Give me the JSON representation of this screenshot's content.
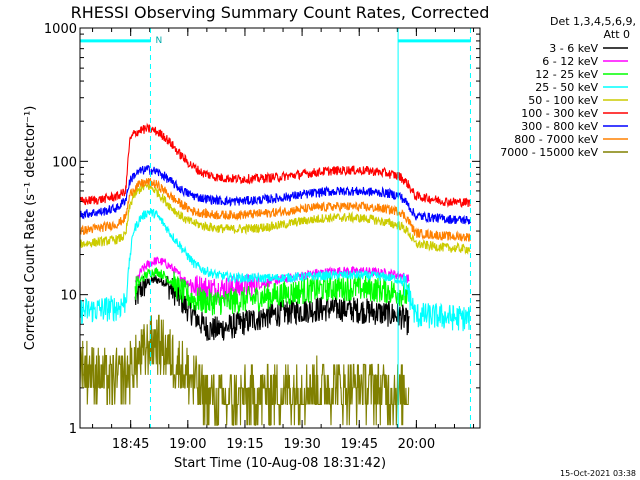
{
  "chart_data": {
    "type": "line",
    "title": "RHESSI Observing Summary Count Rates, Corrected",
    "ylabel": "Corrected Count Rate (s⁻¹ detector⁻¹)",
    "xlabel": "Start Time (10-Aug-08 18:31:42)",
    "timestamp": "15-Oct-2021 03:38",
    "y_scale": "log",
    "ylim": [
      1,
      1000
    ],
    "x_range_min": [
      0,
      105
    ],
    "y_tick_labels": [
      "1",
      "10",
      "100",
      "1000"
    ],
    "x_ticks": [
      {
        "label": "18:45",
        "t": 13.3
      },
      {
        "label": "19:00",
        "t": 28.3
      },
      {
        "label": "19:15",
        "t": 43.3
      },
      {
        "label": "19:30",
        "t": 58.3
      },
      {
        "label": "19:45",
        "t": 73.3
      },
      {
        "label": "20:00",
        "t": 88.3
      }
    ],
    "legend": {
      "header": [
        "Det 1,3,4,5,6,9,",
        "Att 0"
      ],
      "placement": "right"
    },
    "attenuator_bar": {
      "level": 800,
      "color": "#00ffff",
      "segments": [
        [
          0,
          18.5
        ],
        [
          83.5,
          102.5
        ]
      ]
    },
    "attenuator_label": "N",
    "dashed_markers_min": [
      18.5,
      102.5
    ],
    "solid_markers_min": [
      0,
      83.5
    ],
    "series": [
      {
        "name": "3 - 6 keV",
        "color": "#000000",
        "points": [
          [
            14.5,
            9
          ],
          [
            16,
            11
          ],
          [
            18,
            12.5
          ],
          [
            20,
            13
          ],
          [
            22,
            12.5
          ],
          [
            24,
            11
          ],
          [
            26,
            9.5
          ],
          [
            28,
            8
          ],
          [
            30,
            7
          ],
          [
            32,
            6
          ],
          [
            34,
            5.5
          ],
          [
            36,
            5.5
          ],
          [
            40,
            5.8
          ],
          [
            44,
            6.3
          ],
          [
            48,
            6.8
          ],
          [
            52,
            7.2
          ],
          [
            56,
            7.5
          ],
          [
            60,
            7.7
          ],
          [
            64,
            7.8
          ],
          [
            68,
            7.9
          ],
          [
            72,
            7.7
          ],
          [
            76,
            7.5
          ],
          [
            80,
            7.2
          ],
          [
            84,
            7
          ],
          [
            86.5,
            6
          ]
        ]
      },
      {
        "name": "6 - 12 keV",
        "color": "#ff00ff",
        "points": [
          [
            14.5,
            12
          ],
          [
            16,
            15
          ],
          [
            18,
            17
          ],
          [
            20,
            18
          ],
          [
            22,
            17.5
          ],
          [
            24,
            16
          ],
          [
            26,
            14
          ],
          [
            28,
            12.5
          ],
          [
            30,
            11.5
          ],
          [
            34,
            11
          ],
          [
            38,
            11
          ],
          [
            44,
            11.5
          ],
          [
            50,
            12.5
          ],
          [
            56,
            13.5
          ],
          [
            62,
            14.5
          ],
          [
            68,
            15
          ],
          [
            74,
            15
          ],
          [
            80,
            14.5
          ],
          [
            84,
            14
          ],
          [
            86.5,
            13
          ]
        ]
      },
      {
        "name": "12 - 25 keV",
        "color": "#00ff00",
        "points": [
          [
            14.5,
            11
          ],
          [
            16,
            13
          ],
          [
            18,
            14.5
          ],
          [
            20,
            15
          ],
          [
            22,
            14
          ],
          [
            24,
            12.5
          ],
          [
            26,
            11
          ],
          [
            28,
            10
          ],
          [
            30,
            9.2
          ],
          [
            34,
            8.8
          ],
          [
            38,
            8.8
          ],
          [
            44,
            9.2
          ],
          [
            50,
            9.8
          ],
          [
            56,
            10.4
          ],
          [
            62,
            11
          ],
          [
            68,
            11.3
          ],
          [
            74,
            11.2
          ],
          [
            80,
            10.8
          ],
          [
            84,
            10.3
          ],
          [
            86.5,
            9.5
          ]
        ]
      },
      {
        "name": "25 - 50 keV",
        "color": "#00ffff",
        "points": [
          [
            0,
            7.5
          ],
          [
            6,
            7.8
          ],
          [
            10,
            8
          ],
          [
            12,
            9
          ],
          [
            13,
            18
          ],
          [
            14,
            30
          ],
          [
            16,
            38
          ],
          [
            18,
            42
          ],
          [
            20,
            40
          ],
          [
            22,
            34
          ],
          [
            24,
            28
          ],
          [
            26,
            24
          ],
          [
            28,
            20
          ],
          [
            30,
            17
          ],
          [
            32,
            15.5
          ],
          [
            36,
            14
          ],
          [
            40,
            13.5
          ],
          [
            44,
            13.3
          ],
          [
            50,
            13.3
          ],
          [
            56,
            13.5
          ],
          [
            62,
            13.8
          ],
          [
            68,
            14
          ],
          [
            74,
            14
          ],
          [
            80,
            13.6
          ],
          [
            84,
            13
          ],
          [
            86,
            11
          ],
          [
            88,
            7
          ],
          [
            96,
            6.8
          ],
          [
            102.5,
            6.6
          ]
        ]
      },
      {
        "name": "50 - 100 keV",
        "color": "#cccc00",
        "points": [
          [
            0,
            24
          ],
          [
            6,
            25
          ],
          [
            10,
            26
          ],
          [
            12,
            28
          ],
          [
            13,
            45
          ],
          [
            14,
            55
          ],
          [
            16,
            63
          ],
          [
            18,
            65
          ],
          [
            20,
            60
          ],
          [
            22,
            52
          ],
          [
            24,
            45
          ],
          [
            26,
            40
          ],
          [
            28,
            36
          ],
          [
            32,
            33
          ],
          [
            36,
            31.5
          ],
          [
            40,
            31
          ],
          [
            46,
            31.5
          ],
          [
            52,
            33
          ],
          [
            58,
            35.5
          ],
          [
            64,
            37.5
          ],
          [
            70,
            38
          ],
          [
            76,
            37
          ],
          [
            80,
            35
          ],
          [
            84,
            33
          ],
          [
            86,
            30
          ],
          [
            88,
            24
          ],
          [
            96,
            22.5
          ],
          [
            102.5,
            22
          ]
        ]
      },
      {
        "name": "100 - 300 keV",
        "color": "#ff0000",
        "points": [
          [
            0,
            50
          ],
          [
            6,
            52
          ],
          [
            10,
            55
          ],
          [
            12,
            60
          ],
          [
            13,
            140
          ],
          [
            14,
            160
          ],
          [
            16,
            172
          ],
          [
            18,
            175
          ],
          [
            20,
            168
          ],
          [
            22,
            155
          ],
          [
            24,
            135
          ],
          [
            26,
            115
          ],
          [
            28,
            100
          ],
          [
            30,
            90
          ],
          [
            32,
            82
          ],
          [
            36,
            76
          ],
          [
            40,
            74
          ],
          [
            46,
            74
          ],
          [
            52,
            76
          ],
          [
            58,
            80
          ],
          [
            64,
            84
          ],
          [
            70,
            86
          ],
          [
            76,
            85
          ],
          [
            80,
            82
          ],
          [
            84,
            77
          ],
          [
            86,
            68
          ],
          [
            88,
            55
          ],
          [
            96,
            50
          ],
          [
            102.5,
            49
          ]
        ]
      },
      {
        "name": "300 - 800 keV",
        "color": "#0000ff",
        "points": [
          [
            0,
            40
          ],
          [
            6,
            42
          ],
          [
            10,
            45
          ],
          [
            12,
            52
          ],
          [
            13,
            70
          ],
          [
            14,
            78
          ],
          [
            16,
            85
          ],
          [
            18,
            87
          ],
          [
            20,
            84
          ],
          [
            22,
            78
          ],
          [
            24,
            70
          ],
          [
            26,
            63
          ],
          [
            28,
            58
          ],
          [
            30,
            55
          ],
          [
            32,
            53
          ],
          [
            36,
            51
          ],
          [
            40,
            50
          ],
          [
            46,
            51
          ],
          [
            52,
            53
          ],
          [
            58,
            56
          ],
          [
            64,
            59
          ],
          [
            70,
            60
          ],
          [
            76,
            59
          ],
          [
            80,
            58
          ],
          [
            84,
            55
          ],
          [
            86,
            48
          ],
          [
            88,
            39
          ],
          [
            96,
            37
          ],
          [
            102.5,
            36
          ]
        ]
      },
      {
        "name": "800 - 7000 keV",
        "color": "#ff8000",
        "points": [
          [
            0,
            30
          ],
          [
            6,
            32
          ],
          [
            10,
            34
          ],
          [
            12,
            38
          ],
          [
            13,
            55
          ],
          [
            14,
            62
          ],
          [
            16,
            68
          ],
          [
            18,
            70
          ],
          [
            20,
            67
          ],
          [
            22,
            61
          ],
          [
            24,
            54
          ],
          [
            26,
            49
          ],
          [
            28,
            45
          ],
          [
            30,
            42
          ],
          [
            34,
            40
          ],
          [
            38,
            39.5
          ],
          [
            44,
            40
          ],
          [
            50,
            41
          ],
          [
            56,
            43
          ],
          [
            62,
            45
          ],
          [
            68,
            46
          ],
          [
            74,
            45.5
          ],
          [
            80,
            44
          ],
          [
            84,
            42
          ],
          [
            86,
            37
          ],
          [
            88,
            29
          ],
          [
            96,
            27.5
          ],
          [
            102.5,
            27
          ]
        ]
      },
      {
        "name": "7000 - 15000 keV",
        "color": "#808000",
        "points": [
          [
            0,
            3
          ],
          [
            5,
            2.5
          ],
          [
            8,
            2.2
          ],
          [
            12,
            2.5
          ],
          [
            14,
            3
          ],
          [
            16,
            3.5
          ],
          [
            18,
            4
          ],
          [
            20,
            4.5
          ],
          [
            22,
            4
          ],
          [
            24,
            3.5
          ],
          [
            26,
            3
          ],
          [
            28,
            2.5
          ],
          [
            30,
            2.2
          ],
          [
            32,
            1.8
          ],
          [
            36,
            1.6
          ],
          [
            40,
            1.6
          ],
          [
            44,
            1.7
          ],
          [
            48,
            1.8
          ],
          [
            52,
            1.8
          ],
          [
            56,
            1.9
          ],
          [
            60,
            2
          ],
          [
            64,
            2
          ],
          [
            68,
            2
          ],
          [
            72,
            2
          ],
          [
            76,
            2
          ],
          [
            80,
            1.9
          ],
          [
            84,
            1.8
          ],
          [
            86.5,
            1.8
          ]
        ]
      }
    ]
  }
}
